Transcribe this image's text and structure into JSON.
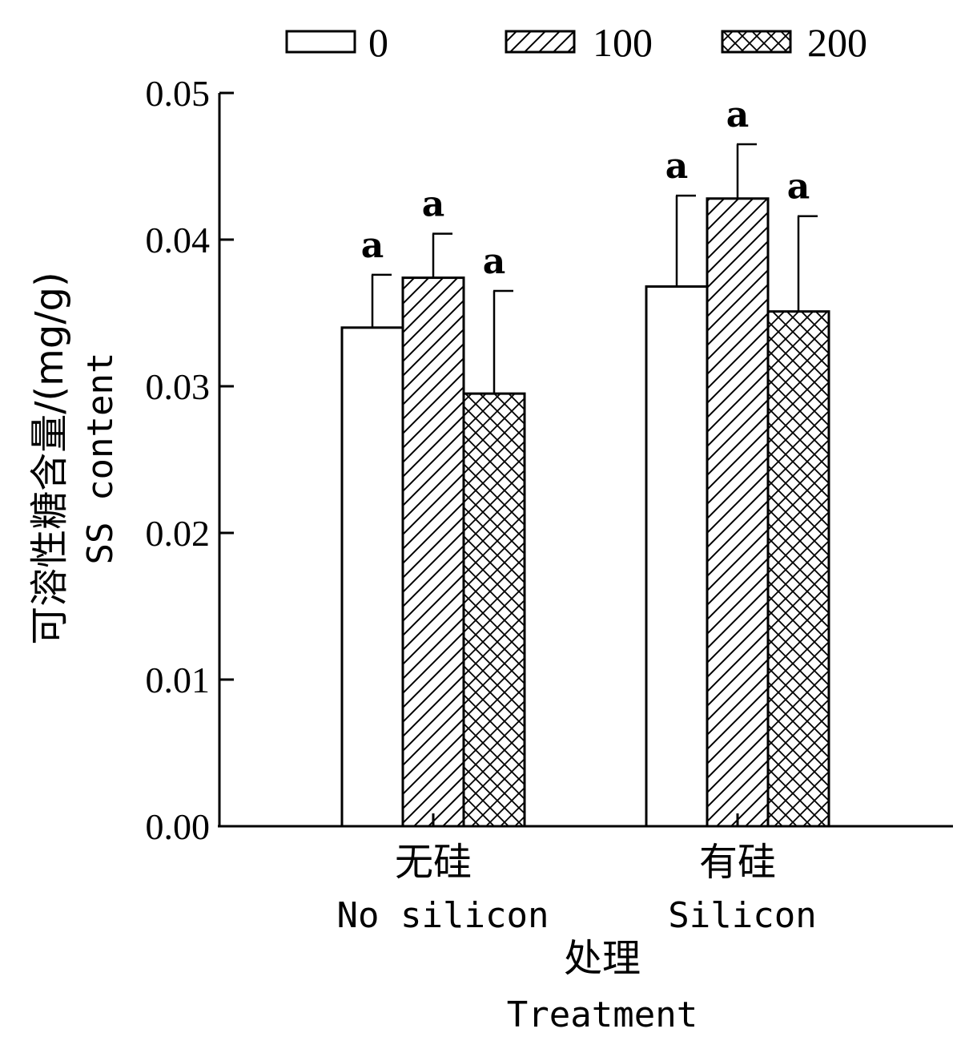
{
  "chart_data": {
    "type": "bar",
    "categories": [
      "无硅",
      "有硅"
    ],
    "categories_en": [
      "No silicon",
      "Silicon"
    ],
    "series": [
      {
        "name": "0",
        "pattern": "none",
        "values": [
          0.034,
          0.0368
        ],
        "errors": [
          0.0036,
          0.0062
        ],
        "labels": [
          "a",
          "a"
        ]
      },
      {
        "name": "100",
        "pattern": "diagonal",
        "values": [
          0.0374,
          0.0428
        ],
        "errors": [
          0.003,
          0.0037
        ],
        "labels": [
          "a",
          "a"
        ]
      },
      {
        "name": "200",
        "pattern": "crosshatch",
        "values": [
          0.0295,
          0.0351
        ],
        "errors": [
          0.007,
          0.0065
        ],
        "labels": [
          "a",
          "a"
        ]
      }
    ],
    "ylim": [
      0,
      0.05
    ],
    "yticks": [
      "0.00",
      "0.01",
      "0.02",
      "0.03",
      "0.04",
      "0.05"
    ],
    "ytick_values": [
      0,
      0.01,
      0.02,
      0.03,
      0.04,
      0.05
    ],
    "ylabel_cn": "可溶性糖含量/(mg/g)",
    "ylabel_en": "SS content",
    "xlabel_cn": "处理",
    "xlabel_en": "Treatment",
    "legend_position": "top",
    "grid": false
  }
}
